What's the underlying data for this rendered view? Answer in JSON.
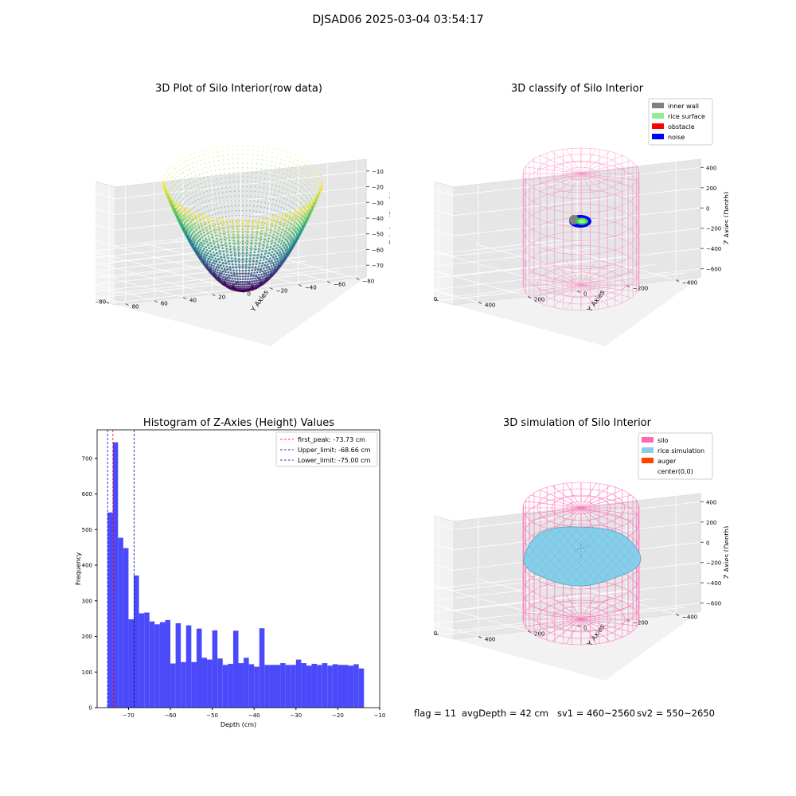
{
  "suptitle": "DJSAD06 2025-03-04 03:54:17",
  "chart_data": [
    {
      "type": "scatter",
      "title": "3D Plot of Silo Interior(row data)",
      "xlabel": "X Axies",
      "ylabel": "Y Axies",
      "zlabel": "Z Axies (Depth)",
      "xlim": [
        -80,
        80
      ],
      "ylim": [
        -80,
        80
      ],
      "zlim": [
        -78,
        -5
      ],
      "x_ticks": [
        "−80",
        "−60",
        "−40",
        "−20",
        "0",
        "20",
        "40",
        "60",
        "80"
      ],
      "y_ticks": [
        "−80",
        "−60",
        "−40",
        "−20",
        "0",
        "20",
        "40",
        "60",
        "80"
      ],
      "z_ticks": [
        "−70",
        "−60",
        "−50",
        "−40",
        "−30",
        "−20",
        "−10"
      ],
      "colormap": "viridis",
      "grid": true
    },
    {
      "type": "scatter",
      "title": "3D classify of Silo Interior",
      "xlabel": "X Axies",
      "ylabel": "Y Axies",
      "zlabel": "Z Axies (Depth)",
      "x_ticks": [
        "−400",
        "−200",
        "0",
        "200",
        "400"
      ],
      "y_ticks": [
        "−400",
        "−200",
        "0",
        "200",
        "400"
      ],
      "z_ticks": [
        "−600",
        "−400",
        "−200",
        "0",
        "200",
        "400"
      ],
      "legend": [
        {
          "name": "inner wall",
          "color": "#808080"
        },
        {
          "name": "rice surface",
          "color": "#90ee90"
        },
        {
          "name": "obstacle",
          "color": "#ff0000"
        },
        {
          "name": "noise",
          "color": "#0000ff"
        }
      ],
      "legend_position": "top-right",
      "grid": true
    },
    {
      "type": "bar",
      "title": "Histogram of Z-Axies (Height) Values",
      "xlabel": "Depth (cm)",
      "ylabel": "Frequency",
      "xlim": [
        -77.5,
        -10
      ],
      "ylim": [
        0,
        780
      ],
      "x_ticks": [
        -70,
        -60,
        -50,
        -40,
        -30,
        -20,
        -10
      ],
      "x_tick_labels": [
        "−70",
        "−60",
        "−50",
        "−40",
        "−30",
        "−20",
        "−10"
      ],
      "y_ticks": [
        0,
        100,
        200,
        300,
        400,
        500,
        600,
        700
      ],
      "bin_start": -75.0,
      "bin_width": 1.25,
      "values": [
        548,
        745,
        477,
        448,
        248,
        371,
        265,
        267,
        242,
        234,
        240,
        246,
        124,
        237,
        128,
        231,
        128,
        222,
        140,
        135,
        217,
        138,
        120,
        123,
        216,
        125,
        140,
        122,
        115,
        223,
        120,
        120,
        120,
        125,
        120,
        120,
        135,
        125,
        118,
        123,
        120,
        125,
        118,
        122,
        120,
        120,
        118,
        122,
        110
      ],
      "bar_color": "#4a4afa",
      "vlines": [
        {
          "label": "first_peak: -73.73 cm",
          "x": -73.73,
          "color": "#ff0000"
        },
        {
          "label": "Upper_limit: -68.66 cm",
          "x": -68.66,
          "color": "#00008b"
        },
        {
          "label": "Lower_limit: -75.00 cm",
          "x": -75.0,
          "color": "#0000ff"
        }
      ],
      "legend_position": "top-right"
    },
    {
      "type": "scatter",
      "title": "3D simulation of Silo Interior",
      "xlabel": "X Axies",
      "ylabel": "Y Axies",
      "zlabel": "Z Axies (Depth)",
      "x_ticks": [
        "−400",
        "−200",
        "0",
        "200",
        "400"
      ],
      "y_ticks": [
        "−400",
        "−200",
        "0",
        "200",
        "400"
      ],
      "z_ticks": [
        "−600",
        "−400",
        "−200",
        "0",
        "200",
        "400"
      ],
      "legend": [
        {
          "name": "silo",
          "color": "#ff69b4"
        },
        {
          "name": "rice simulation",
          "color": "#87ceeb"
        },
        {
          "name": "auger",
          "color": "#ff4500"
        },
        {
          "name": "center(0,0)",
          "color": "none"
        }
      ],
      "legend_position": "top-right",
      "grid": true
    }
  ],
  "footer": {
    "flag": "flag = 11",
    "avg_depth": "avgDepth = 42 cm",
    "sv1": "sv1 = 460~2560",
    "sv2": "sv2 = 550~2650"
  }
}
